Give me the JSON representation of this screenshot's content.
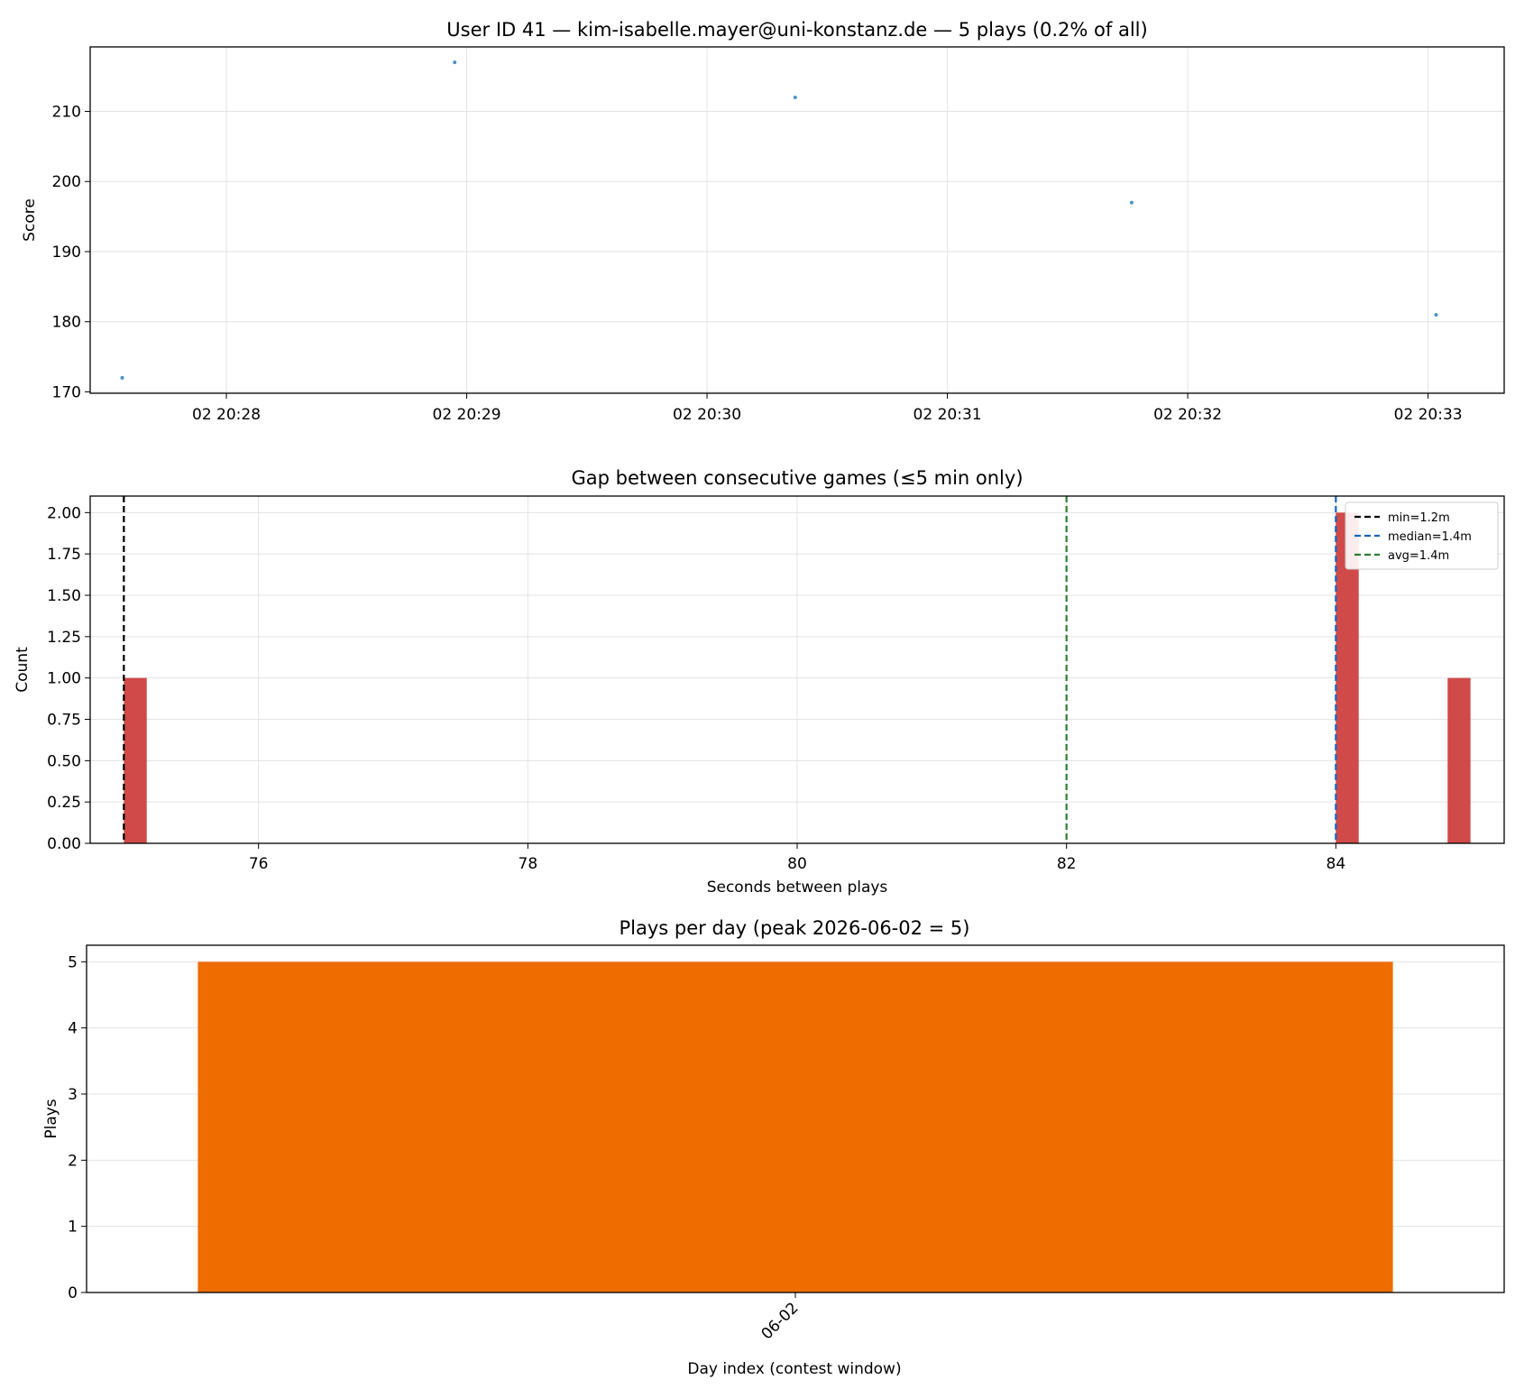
{
  "chart_data": [
    {
      "type": "scatter",
      "title": "User ID 41 — kim-isabelle.mayer@uni-konstanz.de — 5 plays (0.2% of all)",
      "xlabel": "",
      "ylabel": "Score",
      "x_unit": "time (2026-06-02, HH:MM:SS)",
      "xlim": [
        "20:27:26",
        "20:33:19"
      ],
      "ylim": [
        169.8,
        219.2
      ],
      "xticks": [
        "20:28",
        "20:29",
        "20:30",
        "20:31",
        "20:32",
        "20:33"
      ],
      "xtick_labels": [
        "02 20:28",
        "02 20:29",
        "02 20:30",
        "02 20:31",
        "02 20:32",
        "02 20:33"
      ],
      "yticks": [
        170,
        180,
        190,
        200,
        210
      ],
      "points": [
        {
          "x": "20:27:34",
          "y": 172
        },
        {
          "x": "20:28:57",
          "y": 217
        },
        {
          "x": "20:30:22",
          "y": 212
        },
        {
          "x": "20:31:46",
          "y": 197
        },
        {
          "x": "20:33:02",
          "y": 181
        }
      ],
      "color": "#1f77b4",
      "grid": true
    },
    {
      "type": "bar",
      "title": "Gap between consecutive games (≤5 min only)",
      "xlabel": "Seconds between plays",
      "ylabel": "Count",
      "xlim": [
        74.75,
        85.25
      ],
      "ylim": [
        0,
        2.1
      ],
      "xticks": [
        76,
        78,
        80,
        82,
        84
      ],
      "yticks": [
        "0.00",
        "0.25",
        "0.50",
        "0.75",
        "1.00",
        "1.25",
        "1.50",
        "1.75",
        "2.00"
      ],
      "bins": [
        {
          "x0": 75.0,
          "x1": 75.17,
          "count": 1
        },
        {
          "x0": 84.0,
          "x1": 84.17,
          "count": 2
        },
        {
          "x0": 84.83,
          "x1": 85.0,
          "count": 1
        }
      ],
      "bar_color": "#d04a4a",
      "reference_lines": [
        {
          "label": "min=1.2m",
          "x": 75.0,
          "color": "#000000"
        },
        {
          "label": "median=1.4m",
          "x": 84.0,
          "color": "#1565c0"
        },
        {
          "label": "avg=1.4m",
          "x": 82.0,
          "color": "#2e7d32"
        }
      ],
      "legend": "top-right",
      "grid": true
    },
    {
      "type": "bar",
      "title": "Plays per day (peak 2026-06-02 = 5)",
      "xlabel": "Day index (contest window)",
      "ylabel": "Plays",
      "categories": [
        "06-02"
      ],
      "values": [
        5
      ],
      "ylim": [
        0,
        5.25
      ],
      "yticks": [
        0,
        1,
        2,
        3,
        4,
        5
      ],
      "bar_color": "#ef6c00",
      "grid": true
    }
  ]
}
